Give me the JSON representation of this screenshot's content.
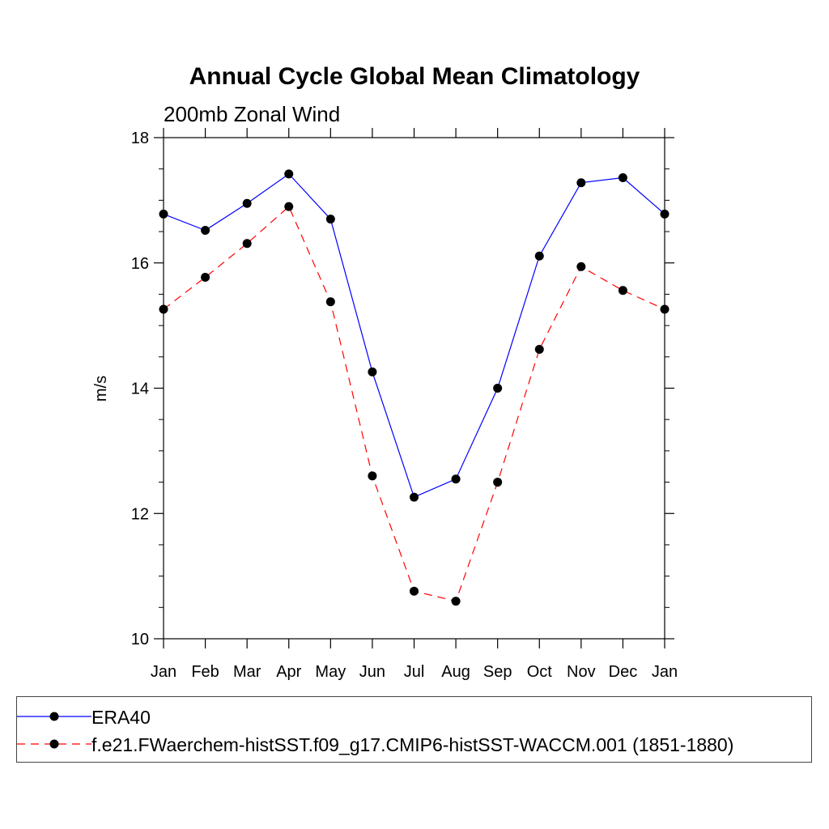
{
  "chart_data": {
    "type": "line",
    "title": "Annual Cycle Global Mean Climatology",
    "subtitle": "200mb Zonal Wind",
    "xlabel": "",
    "ylabel": "m/s",
    "categories": [
      "Jan",
      "Feb",
      "Mar",
      "Apr",
      "May",
      "Jun",
      "Jul",
      "Aug",
      "Sep",
      "Oct",
      "Nov",
      "Dec",
      "Jan"
    ],
    "ylim": [
      10,
      18
    ],
    "yticks": [
      10,
      12,
      14,
      16,
      18
    ],
    "grid": false,
    "legend_position": "bottom",
    "series": [
      {
        "name": "ERA40",
        "color": "#0000ff",
        "dash": "solid",
        "marker": "filled-circle",
        "values": [
          16.78,
          16.52,
          16.95,
          17.42,
          16.7,
          14.26,
          12.26,
          12.55,
          14.0,
          16.11,
          17.28,
          17.36,
          16.78
        ]
      },
      {
        "name": "f.e21.FWaerchem-histSST.f09_g17.CMIP6-histSST-WACCM.001 (1851-1880)",
        "color": "#ff0000",
        "dash": "dashed",
        "marker": "filled-circle",
        "values": [
          15.26,
          15.77,
          16.31,
          16.9,
          15.38,
          12.6,
          10.76,
          10.6,
          12.5,
          14.62,
          15.94,
          15.56,
          15.26
        ]
      }
    ]
  }
}
